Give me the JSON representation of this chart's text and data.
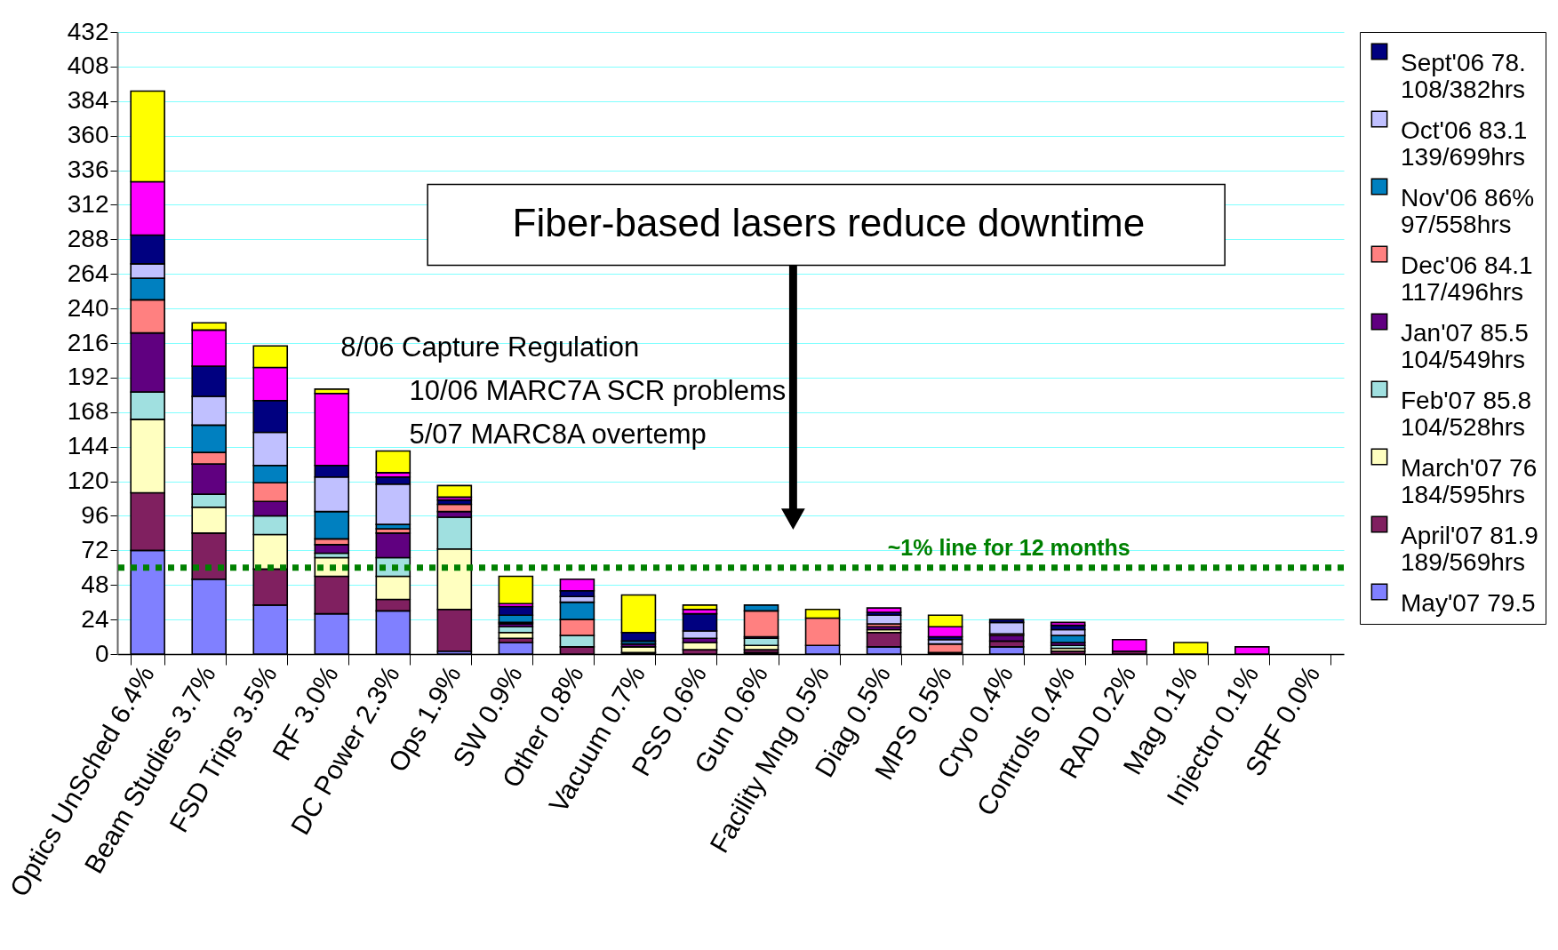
{
  "chart_data": {
    "type": "bar",
    "stacked": true,
    "categories": [
      "Optics UnSched 6.4%",
      "Beam Studies 3.7%",
      "FSD Trips 3.5%",
      "RF 3.0%",
      "DC Power 2.3%",
      "Ops 1.9%",
      "SW 0.9%",
      "Other 0.8%",
      "Vacuum 0.7%",
      "PSS 0.6%",
      "Gun 0.6%",
      "Facility Mng  0.5%",
      "Diag 0.5%",
      "MPS 0.5%",
      "Cryo 0.4%",
      "Controls  0.4%",
      "RAD 0.2%",
      "Mag 0.1%",
      "Injector 0.1%",
      "SRF 0.0%"
    ],
    "series": [
      {
        "name": "May'07 79.5",
        "color": "#8080ff",
        "values": [
          72,
          52,
          34,
          28,
          30,
          2,
          8,
          null,
          1,
          null,
          1,
          6,
          5,
          null,
          5,
          null,
          null,
          null,
          null,
          null
        ]
      },
      {
        "name": "April'07 81.9 189/569hrs",
        "color": "#802060",
        "values": [
          40,
          32,
          25,
          26,
          8,
          29,
          3,
          5,
          null,
          3,
          2,
          null,
          10,
          1,
          4,
          2,
          2,
          null,
          null,
          null
        ]
      },
      {
        "name": "March'07 76 184/595hrs",
        "color": "#ffffc0",
        "values": [
          51,
          18,
          24,
          13,
          16,
          42,
          4,
          null,
          4,
          5,
          3,
          null,
          2,
          null,
          null,
          2,
          null,
          null,
          null,
          null
        ]
      },
      {
        "name": "Feb'07 85.8 104/528hrs",
        "color": "#a0e0e0",
        "values": [
          19,
          9,
          13,
          3,
          13,
          22,
          4,
          8,
          null,
          null,
          5,
          null,
          null,
          null,
          null,
          2,
          null,
          null,
          null,
          null
        ]
      },
      {
        "name": "Jan'07 85.5 104/549hrs",
        "color": "#600080",
        "values": [
          41,
          21,
          10,
          6,
          17,
          4,
          2,
          null,
          2,
          3,
          1,
          null,
          2,
          null,
          4,
          2,
          null,
          null,
          null,
          null
        ]
      },
      {
        "name": "Dec'06 84.1 117/496hrs",
        "color": "#ff8080",
        "values": [
          23,
          8,
          13,
          4,
          3,
          5,
          1,
          11,
          null,
          null,
          18,
          19,
          2,
          6,
          1,
          null,
          null,
          null,
          null,
          null
        ]
      },
      {
        "name": "Nov'06 86% 97/558hrs",
        "color": "#0080c0",
        "values": [
          15,
          19,
          12,
          19,
          3,
          null,
          5,
          12,
          2,
          null,
          4,
          null,
          null,
          null,
          null,
          5,
          null,
          null,
          null,
          null
        ]
      },
      {
        "name": "Oct'06 83.1 139/699hrs",
        "color": "#c0c0ff",
        "values": [
          10,
          20,
          23,
          24,
          28,
          null,
          null,
          4,
          null,
          5,
          null,
          null,
          6,
          3,
          8,
          4,
          null,
          null,
          null,
          null
        ]
      },
      {
        "name": "Sept'06 78. 108/382hrs",
        "color": "#000080",
        "values": [
          20,
          21,
          22,
          8,
          5,
          3,
          6,
          4,
          6,
          12,
          null,
          null,
          2,
          2,
          2,
          3,
          null,
          null,
          null,
          null
        ]
      },
      {
        "color": "#ff00ff",
        "values": [
          37,
          25,
          23,
          50,
          3,
          2,
          2,
          8,
          null,
          3,
          null,
          null,
          3,
          7,
          null,
          2,
          8,
          null,
          5,
          null
        ]
      },
      {
        "color": "#ffff00",
        "values": [
          63,
          5,
          15,
          3,
          15,
          8,
          19,
          null,
          26,
          3,
          null,
          6,
          null,
          8,
          null,
          null,
          null,
          8,
          null,
          null
        ]
      }
    ],
    "ylim": [
      0,
      432
    ],
    "yticks": [
      0,
      24,
      48,
      72,
      96,
      120,
      144,
      168,
      192,
      216,
      240,
      264,
      288,
      312,
      336,
      360,
      384,
      408,
      432
    ],
    "grid": "y",
    "legend": "right",
    "ref_lines": [
      {
        "axis": "y",
        "value": 60,
        "label": "~1% line for 12 months",
        "color": "#008000",
        "line_style": "dotted"
      }
    ],
    "annotations": [
      "Fiber-based lasers reduce downtime",
      "8/06 Capture Regulation",
      "10/06 MARC7A SCR problems",
      "5/07 MARC8A overtemp"
    ]
  }
}
